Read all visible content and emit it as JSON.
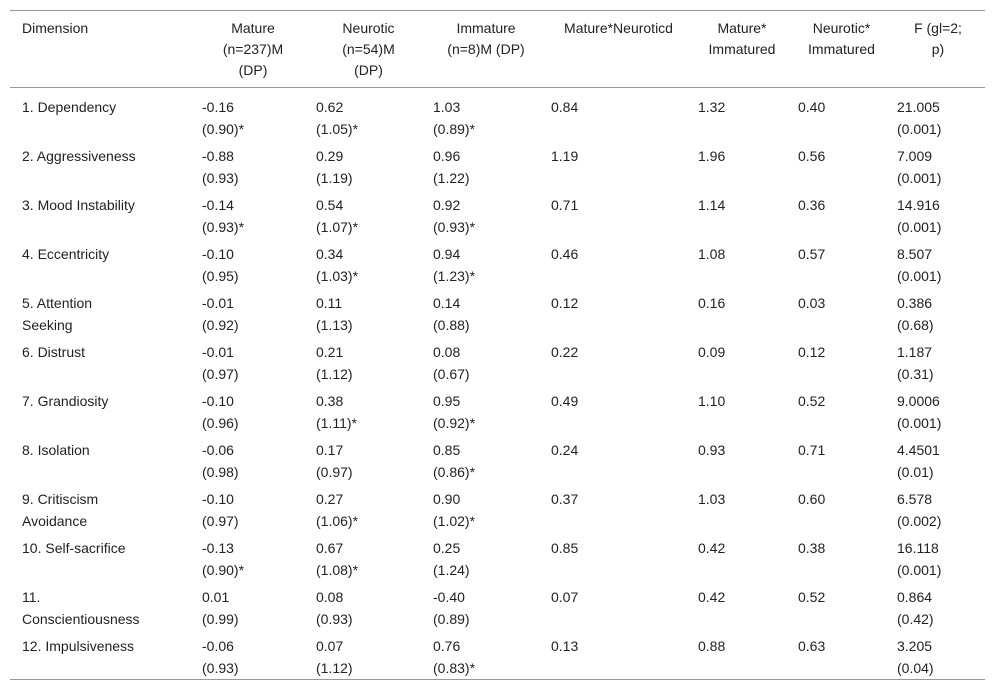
{
  "table": {
    "header": [
      [
        "Dimension"
      ],
      [
        "Mature",
        "(n=237)M",
        "(DP)"
      ],
      [
        "Neurotic",
        "(n=54)M",
        "(DP)"
      ],
      [
        "Immature",
        "(n=8)M (DP)"
      ],
      [
        "Mature*Neuroticd"
      ],
      [
        "Mature*",
        "Immatured"
      ],
      [
        "Neurotic*",
        "Immatured"
      ],
      [
        "F (gl=2;",
        "p)"
      ]
    ],
    "rows": [
      [
        [
          "1. Dependency"
        ],
        [
          "-0.16",
          "(0.90)*"
        ],
        [
          "0.62",
          "(1.05)*"
        ],
        [
          "1.03",
          "(0.89)*"
        ],
        [
          "0.84"
        ],
        [
          "1.32"
        ],
        [
          "0.40"
        ],
        [
          "21.005",
          "(0.001)"
        ]
      ],
      [
        [
          "2. Aggressiveness"
        ],
        [
          "-0.88",
          "(0.93)"
        ],
        [
          "0.29",
          "(1.19)"
        ],
        [
          "0.96",
          "(1.22)"
        ],
        [
          "1.19"
        ],
        [
          "1.96"
        ],
        [
          "0.56"
        ],
        [
          "7.009",
          "(0.001)"
        ]
      ],
      [
        [
          "3. Mood Instability"
        ],
        [
          "-0.14",
          "(0.93)*"
        ],
        [
          "0.54",
          "(1.07)*"
        ],
        [
          "0.92",
          "(0.93)*"
        ],
        [
          "0.71"
        ],
        [
          "1.14"
        ],
        [
          "0.36"
        ],
        [
          "14.916",
          "(0.001)"
        ]
      ],
      [
        [
          "4. Eccentricity"
        ],
        [
          "-0.10",
          "(0.95)"
        ],
        [
          "0.34",
          "(1.03)*"
        ],
        [
          "0.94",
          "(1.23)*"
        ],
        [
          "0.46"
        ],
        [
          "1.08"
        ],
        [
          "0.57"
        ],
        [
          "8.507",
          "(0.001)"
        ]
      ],
      [
        [
          "5. Attention",
          "Seeking"
        ],
        [
          "-0.01",
          "(0.92)"
        ],
        [
          "0.11",
          "(1.13)"
        ],
        [
          "0.14",
          "(0.88)"
        ],
        [
          "0.12"
        ],
        [
          "0.16"
        ],
        [
          "0.03"
        ],
        [
          "0.386",
          "(0.68)"
        ]
      ],
      [
        [
          "6. Distrust"
        ],
        [
          "-0.01",
          "(0.97)"
        ],
        [
          "0.21",
          "(1.12)"
        ],
        [
          "0.08",
          "(0.67)"
        ],
        [
          "0.22"
        ],
        [
          "0.09"
        ],
        [
          "0.12"
        ],
        [
          "1.187",
          "(0.31)"
        ]
      ],
      [
        [
          "7. Grandiosity"
        ],
        [
          "-0.10",
          "(0.96)"
        ],
        [
          "0.38",
          "(1.11)*"
        ],
        [
          "0.95",
          "(0.92)*"
        ],
        [
          "0.49"
        ],
        [
          "1.10"
        ],
        [
          "0.52"
        ],
        [
          "9.0006",
          "(0.001)"
        ]
      ],
      [
        [
          "8. Isolation"
        ],
        [
          "-0.06",
          "(0.98)"
        ],
        [
          "0.17",
          "(0.97)"
        ],
        [
          "0.85",
          "(0.86)*"
        ],
        [
          "0.24"
        ],
        [
          "0.93"
        ],
        [
          "0.71"
        ],
        [
          "4.4501",
          "(0.01)"
        ]
      ],
      [
        [
          "9. Critiscism",
          "Avoidance"
        ],
        [
          "-0.10",
          "(0.97)"
        ],
        [
          "0.27",
          "(1.06)*"
        ],
        [
          "0.90",
          "(1.02)*"
        ],
        [
          "0.37"
        ],
        [
          "1.03"
        ],
        [
          "0.60"
        ],
        [
          "6.578",
          "(0.002)"
        ]
      ],
      [
        [
          "10. Self-sacrifice"
        ],
        [
          "-0.13",
          "(0.90)*"
        ],
        [
          "0.67",
          "(1.08)*"
        ],
        [
          "0.25",
          "(1.24)"
        ],
        [
          "0.85"
        ],
        [
          "0.42"
        ],
        [
          "0.38"
        ],
        [
          "16.118",
          "(0.001)"
        ]
      ],
      [
        [
          "11.",
          "Conscientiousness"
        ],
        [
          "0.01",
          "(0.99)"
        ],
        [
          "0.08",
          "(0.93)"
        ],
        [
          "-0.40",
          "(0.89)"
        ],
        [
          "0.07"
        ],
        [
          "0.42"
        ],
        [
          "0.52"
        ],
        [
          "0.864",
          "(0.42)"
        ]
      ],
      [
        [
          "12. Impulsiveness"
        ],
        [
          "-0.06",
          "(0.93)"
        ],
        [
          "0.07",
          "(1.12)"
        ],
        [
          "0.76",
          "(0.83)*"
        ],
        [
          "0.13"
        ],
        [
          "0.88"
        ],
        [
          "0.63"
        ],
        [
          "3.205",
          "(0.04)"
        ]
      ]
    ]
  }
}
